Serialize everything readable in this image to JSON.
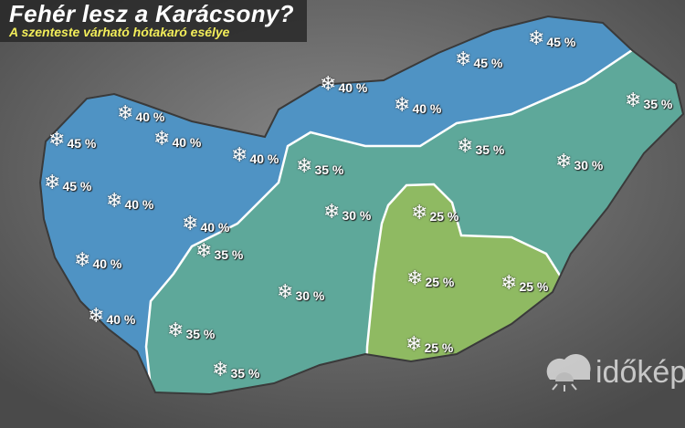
{
  "title": "Fehér lesz a Karácsony?",
  "subtitle": "A szenteste várható hótakaró esélye",
  "logo": "időkép",
  "colors": {
    "high": "#4f93c4",
    "mid": "#5ea89a",
    "low": "#8fba62",
    "border": "#ffffff"
  },
  "marker_icon": "snowflake-icon",
  "markers": [
    {
      "label": "45 %",
      "chance": 45
    },
    {
      "label": "45 %",
      "chance": 45
    },
    {
      "label": "40 %",
      "chance": 40
    },
    {
      "label": "40 %",
      "chance": 40
    },
    {
      "label": "40 %",
      "chance": 40
    },
    {
      "label": "45 %",
      "chance": 45
    },
    {
      "label": "40 %",
      "chance": 40
    },
    {
      "label": "40 %",
      "chance": 40
    },
    {
      "label": "35 %",
      "chance": 35
    },
    {
      "label": "35 %",
      "chance": 35
    },
    {
      "label": "35 %",
      "chance": 35
    },
    {
      "label": "30 %",
      "chance": 30
    },
    {
      "label": "45 %",
      "chance": 45
    },
    {
      "label": "40 %",
      "chance": 40
    },
    {
      "label": "40 %",
      "chance": 40
    },
    {
      "label": "30 %",
      "chance": 30
    },
    {
      "label": "25 %",
      "chance": 25
    },
    {
      "label": "35 %",
      "chance": 35
    },
    {
      "label": "40 %",
      "chance": 40
    },
    {
      "label": "30 %",
      "chance": 30
    },
    {
      "label": "25 %",
      "chance": 25
    },
    {
      "label": "25 %",
      "chance": 25
    },
    {
      "label": "40 %",
      "chance": 40
    },
    {
      "label": "35 %",
      "chance": 35
    },
    {
      "label": "25 %",
      "chance": 25
    },
    {
      "label": "35 %",
      "chance": 35
    }
  ]
}
